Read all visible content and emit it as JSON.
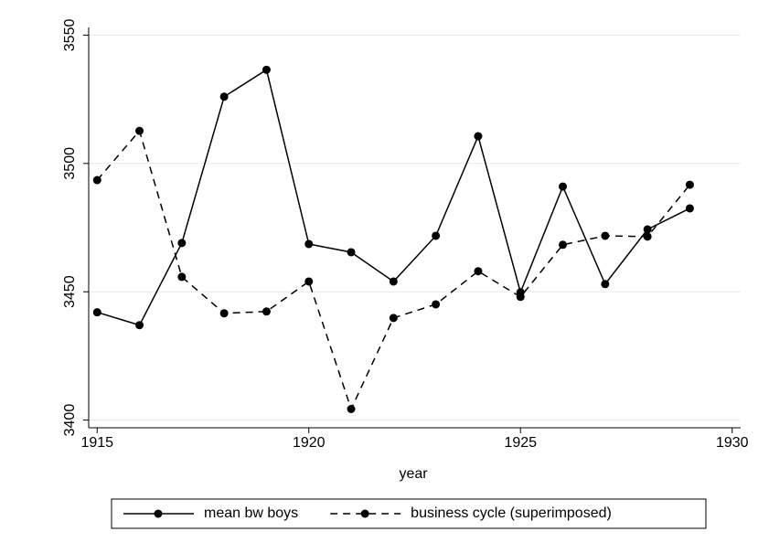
{
  "chart_data": {
    "type": "line",
    "x_label": "year",
    "x": [
      1915,
      1916,
      1917,
      1918,
      1919,
      1920,
      1921,
      1922,
      1923,
      1924,
      1925,
      1926,
      1927,
      1928,
      1929
    ],
    "series": [
      {
        "name": "mean bw boys",
        "color": "#000000",
        "dashed": false,
        "values": [
          3442,
          3437,
          3469,
          3526,
          3536.5,
          3468.6,
          3465.4,
          3454,
          3471.8,
          3510.6,
          3449.8,
          3491,
          3453,
          3474.3,
          3482.5
        ]
      },
      {
        "name": "business cycle (superimposed)",
        "color": "#000000",
        "dashed": true,
        "values": [
          3493.5,
          3512.7,
          3455.8,
          3441.6,
          3442.3,
          3454,
          3404.3,
          3439.8,
          3445.1,
          3458,
          3448,
          3468.3,
          3471.8,
          3471.5,
          3491.7
        ]
      }
    ],
    "xlim": [
      1914.8,
      1930.2
    ],
    "xticks": [
      1915,
      1920,
      1925,
      1930
    ],
    "ylim": [
      3397,
      3553
    ],
    "yticks": [
      3400,
      3450,
      3500,
      3550
    ],
    "grid": true,
    "legend_position": "bottom"
  }
}
